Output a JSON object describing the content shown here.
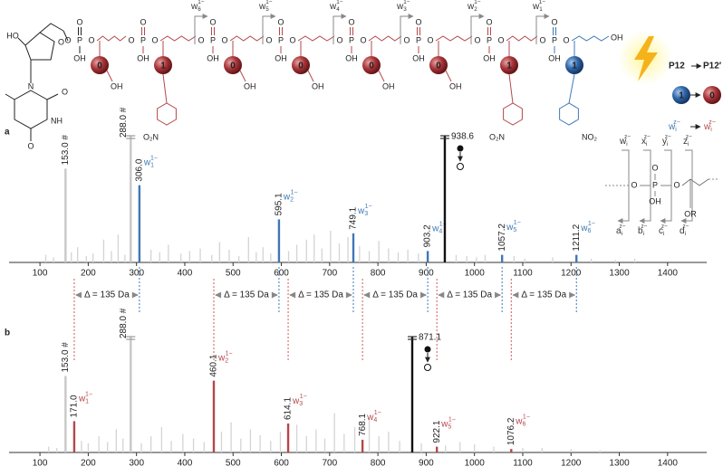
{
  "scheme": {
    "sugar": {
      "hydroxy": "HO",
      "ring_o": "O",
      "n1": "N",
      "n3": "NH",
      "o2": "O",
      "o4": "O"
    },
    "phosphates": [
      {
        "o_left": "O",
        "atom": "P",
        "o_right": "O",
        "oxo": "O",
        "hydroxy": "OH",
        "color": "#222222"
      },
      {
        "o_left": "O",
        "atom": "P",
        "o_right": "O",
        "oxo": "O",
        "hydroxy": "OH",
        "color": "#b5474b"
      },
      {
        "o_left": "O",
        "atom": "P",
        "o_right": "O",
        "oxo": "O",
        "hydroxy": "OH",
        "color": "#b5474b"
      },
      {
        "o_left": "O",
        "atom": "P",
        "o_right": "O",
        "oxo": "O",
        "hydroxy": "OH",
        "color": "#b5474b"
      },
      {
        "o_left": "O",
        "atom": "P",
        "o_right": "O",
        "oxo": "O",
        "hydroxy": "OH",
        "color": "#b5474b"
      },
      {
        "o_left": "O",
        "atom": "P",
        "o_right": "O",
        "oxo": "O",
        "hydroxy": "OH",
        "color": "#b5474b"
      },
      {
        "o_left": "O",
        "atom": "P",
        "o_right": "O",
        "oxo": "O",
        "hydroxy": "OH",
        "color": "#b5474b"
      },
      {
        "o_left": "O",
        "atom": "P",
        "o_right": "O",
        "oxo": "O",
        "hydroxy": "OH",
        "color": "#3f78b5"
      }
    ],
    "monomers": [
      {
        "bit": "0",
        "color": "#b5474b",
        "hydroxy": "OH"
      },
      {
        "bit": "1",
        "color": "#b5474b",
        "nitro": "O₂N"
      },
      {
        "bit": "0",
        "color": "#b5474b",
        "hydroxy": "OH"
      },
      {
        "bit": "0",
        "color": "#b5474b",
        "hydroxy": "OH"
      },
      {
        "bit": "0",
        "color": "#b5474b",
        "hydroxy": "OH"
      },
      {
        "bit": "0",
        "color": "#b5474b",
        "hydroxy": "OH"
      },
      {
        "bit": "1",
        "color": "#b5474b",
        "nitro": "O₂N"
      },
      {
        "bit": "1",
        "color": "#3f78b5",
        "nitro": "NO₂"
      }
    ],
    "terminal": "OH",
    "fragments": [
      {
        "base": "w",
        "sub": "6",
        "sup": "1−"
      },
      {
        "base": "w",
        "sub": "5",
        "sup": "1−"
      },
      {
        "base": "w",
        "sub": "4",
        "sup": "1−"
      },
      {
        "base": "w",
        "sub": "3",
        "sup": "1−"
      },
      {
        "base": "w",
        "sub": "2",
        "sup": "1−"
      },
      {
        "base": "w",
        "sub": "1",
        "sup": "1−"
      }
    ]
  },
  "legend": {
    "from": "P12",
    "to": "P12′",
    "bit_from": {
      "bit": "1",
      "color": "#3f78b5"
    },
    "bit_to": {
      "bit": "0",
      "color": "#b5474b"
    },
    "ion_from": {
      "base": "w",
      "sub": "i",
      "sup": "z−",
      "color": "#3f78b5"
    },
    "ion_to": {
      "base": "w",
      "sub": "i",
      "sup": "z−",
      "color": "#b5474b"
    }
  },
  "fragmentation": {
    "top": [
      {
        "base": "w",
        "sub": "i",
        "sup": "z−"
      },
      {
        "base": "x",
        "sub": "i",
        "sup": "z−"
      },
      {
        "base": "y",
        "sub": "i",
        "sup": "z−"
      },
      {
        "base": "z",
        "sub": "i",
        "sup": "z−"
      }
    ],
    "bottom": [
      {
        "base": "a",
        "sub": "i",
        "sup": "z−"
      },
      {
        "base": "b",
        "sub": "i",
        "sup": "z−"
      },
      {
        "base": "c",
        "sub": "i",
        "sup": "z−"
      },
      {
        "base": "d",
        "sub": "i",
        "sup": "z−"
      }
    ],
    "atoms": {
      "o_left": "O",
      "atom": "P",
      "o_right": "O",
      "oxo": "O",
      "hydroxy": "OH",
      "ester": "OR"
    }
  },
  "chart_data": [
    {
      "type": "spectrum",
      "panel": "a",
      "xlim": [
        36,
        1481
      ],
      "xticks": [
        100,
        200,
        300,
        400,
        500,
        600,
        700,
        800,
        900,
        1000,
        1100,
        1200,
        1300,
        1400
      ],
      "ylim": [
        0,
        100
      ],
      "peaks": [
        {
          "mz": 153.0,
          "intensity": 74,
          "label": "153.0 #",
          "color": "#c8c8c8"
        },
        {
          "mz": 288.0,
          "intensity": 100,
          "label": "288.0 #",
          "color": "#c8c8c8",
          "broken": true
        },
        {
          "mz": 306.0,
          "intensity": 61,
          "label": "306.0",
          "color": "#3f78b5",
          "ion": {
            "base": "w",
            "sub": "1",
            "sup": "1−"
          }
        },
        {
          "mz": 595.1,
          "intensity": 34,
          "label": "595.1",
          "color": "#3f78b5",
          "ion": {
            "base": "w",
            "sub": "2",
            "sup": "1−"
          }
        },
        {
          "mz": 749.1,
          "intensity": 23,
          "label": "749.1",
          "color": "#3f78b5",
          "ion": {
            "base": "w",
            "sub": "3",
            "sup": "1−"
          }
        },
        {
          "mz": 903.2,
          "intensity": 9,
          "label": "903.2",
          "color": "#3f78b5",
          "ion": {
            "base": "w",
            "sub": "4",
            "sup": "1−"
          }
        },
        {
          "mz": 938.6,
          "intensity": 100,
          "label": "938.6",
          "color": "#111111",
          "broken": true,
          "precursor": true
        },
        {
          "mz": 1057.2,
          "intensity": 6,
          "label": "1057.2",
          "color": "#3f78b5",
          "ion": {
            "base": "w",
            "sub": "5",
            "sup": "1−"
          }
        },
        {
          "mz": 1211.2,
          "intensity": 6,
          "label": "1211.2",
          "color": "#3f78b5",
          "ion": {
            "base": "w",
            "sub": "6",
            "sup": "1−"
          }
        }
      ],
      "noise": {
        "x": [
          112,
          128,
          165,
          178,
          196,
          210,
          232,
          248,
          262,
          276,
          330,
          348,
          366,
          392,
          410,
          432,
          456,
          472,
          492,
          512,
          532,
          548,
          562,
          578,
          615,
          632,
          652,
          668,
          684,
          702,
          720,
          738,
          762,
          782,
          802,
          822,
          842,
          862,
          884,
          962,
          984,
          1004,
          1022,
          1082,
          1104,
          1162,
          1242,
          1292,
          1332
        ],
        "values": [
          6,
          4,
          8,
          12,
          5,
          7,
          18,
          9,
          22,
          6,
          10,
          8,
          14,
          7,
          9,
          11,
          6,
          16,
          10,
          5,
          20,
          8,
          12,
          7,
          9,
          14,
          18,
          22,
          11,
          25,
          15,
          20,
          13,
          9,
          17,
          11,
          8,
          10,
          7,
          6,
          5,
          4,
          6,
          5,
          3,
          4,
          3,
          2,
          3
        ]
      },
      "mass_differences": [
        {
          "from": 171.0,
          "to": 306.0,
          "label": "Δ = 135 Da"
        },
        {
          "from": 460.1,
          "to": 595.1,
          "label": "Δ = 135 Da"
        },
        {
          "from": 614.1,
          "to": 749.1,
          "label": "Δ = 135 Da"
        },
        {
          "from": 768.1,
          "to": 903.2,
          "label": "Δ = 135 Da"
        },
        {
          "from": 922.1,
          "to": 1057.2,
          "label": "Δ = 135 Da"
        },
        {
          "from": 1076.2,
          "to": 1211.2,
          "label": "Δ = 135 Da"
        }
      ]
    },
    {
      "type": "spectrum",
      "panel": "b",
      "xlim": [
        36,
        1481
      ],
      "xticks": [
        100,
        200,
        300,
        400,
        500,
        600,
        700,
        800,
        900,
        1000,
        1100,
        1200,
        1300,
        1400
      ],
      "ylim": [
        0,
        100
      ],
      "peaks": [
        {
          "mz": 153.0,
          "intensity": 66,
          "label": "153.0 #",
          "color": "#c8c8c8"
        },
        {
          "mz": 171.0,
          "intensity": 27,
          "label": "171.0",
          "color": "#b5474b",
          "ion": {
            "base": "w",
            "sub": "1",
            "sup": "1−"
          }
        },
        {
          "mz": 288.0,
          "intensity": 100,
          "label": "288.0 #",
          "color": "#c8c8c8",
          "broken": true
        },
        {
          "mz": 460.1,
          "intensity": 62,
          "label": "460.1",
          "color": "#b5474b",
          "ion": {
            "base": "w",
            "sub": "2",
            "sup": "1−"
          }
        },
        {
          "mz": 614.1,
          "intensity": 25,
          "label": "614.1",
          "color": "#b5474b",
          "ion": {
            "base": "w",
            "sub": "3",
            "sup": "1−"
          }
        },
        {
          "mz": 768.1,
          "intensity": 11,
          "label": "768.1",
          "color": "#b5474b",
          "ion": {
            "base": "w",
            "sub": "4",
            "sup": "1−"
          }
        },
        {
          "mz": 871.1,
          "intensity": 100,
          "label": "871.1",
          "color": "#111111",
          "broken": true,
          "precursor": true
        },
        {
          "mz": 922.1,
          "intensity": 5,
          "label": "922.1",
          "color": "#b5474b",
          "ion": {
            "base": "w",
            "sub": "5",
            "sup": "1−"
          }
        },
        {
          "mz": 1076.2,
          "intensity": 3,
          "label": "1076.2",
          "color": "#b5474b",
          "ion": {
            "base": "w",
            "sub": "6",
            "sup": "1−"
          }
        }
      ],
      "noise": {
        "x": [
          118,
          135,
          186,
          200,
          222,
          240,
          258,
          272,
          310,
          330,
          352,
          372,
          396,
          418,
          440,
          476,
          496,
          516,
          536,
          556,
          578,
          598,
          632,
          652,
          672,
          690,
          710,
          730,
          752,
          782,
          802,
          822,
          845,
          890,
          940,
          970,
          1000,
          1040,
          1100,
          1140,
          1200,
          1260
        ],
        "values": [
          5,
          4,
          10,
          8,
          14,
          9,
          20,
          12,
          8,
          14,
          22,
          10,
          16,
          12,
          9,
          18,
          26,
          12,
          20,
          15,
          10,
          18,
          24,
          14,
          20,
          12,
          34,
          16,
          22,
          30,
          14,
          18,
          10,
          8,
          6,
          9,
          7,
          5,
          4,
          4,
          3,
          2
        ]
      }
    }
  ],
  "panel_labels": [
    "a",
    "b"
  ]
}
